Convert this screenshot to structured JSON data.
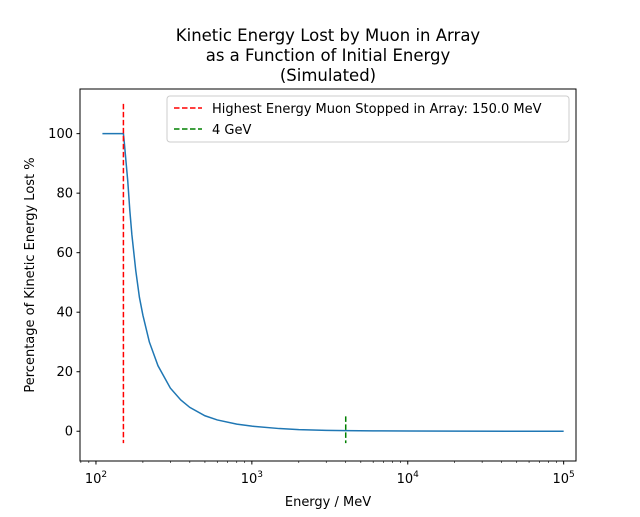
{
  "chart_data": {
    "type": "line",
    "title": [
      "Kinetic Energy Lost by Muon in Array",
      "as a Function of Initial Energy",
      "(Simulated)"
    ],
    "xlabel": "Energy / MeV",
    "ylabel": "Percentage of Kinetic Energy Lost %",
    "xscale": "log",
    "xlim": [
      79,
      120000
    ],
    "ylim": [
      -10,
      115
    ],
    "x_ticks": [
      {
        "value": 100,
        "base": "10",
        "exp": "2"
      },
      {
        "value": 1000,
        "base": "10",
        "exp": "3"
      },
      {
        "value": 10000,
        "base": "10",
        "exp": "4"
      },
      {
        "value": 100000,
        "base": "10",
        "exp": "5"
      }
    ],
    "y_ticks": [
      0,
      20,
      40,
      60,
      80,
      100
    ],
    "grid": false,
    "legend_position": "top-right",
    "series": [
      {
        "name": "kinetic-energy-lost",
        "color": "#1f77b4",
        "style": "solid",
        "x": [
          110,
          130,
          150,
          152,
          155,
          160,
          165,
          170,
          180,
          190,
          200,
          220,
          250,
          300,
          350,
          400,
          500,
          600,
          800,
          1000,
          1500,
          2000,
          3000,
          4000,
          6000,
          10000,
          20000,
          50000,
          100000
        ],
        "y": [
          100,
          100,
          100,
          97,
          92,
          84,
          74,
          66,
          54,
          45,
          39,
          30,
          22,
          14.5,
          10.5,
          8,
          5.2,
          3.8,
          2.4,
          1.7,
          0.9,
          0.55,
          0.3,
          0.2,
          0.13,
          0.07,
          0.03,
          0.01,
          0.005
        ]
      }
    ],
    "vlines": [
      {
        "name": "stopped-line",
        "label": "Highest Energy Muon Stopped in Array: 150.0 MeV",
        "x": 150,
        "ymin": -4,
        "ymax": 110,
        "color": "#ff0000",
        "style": "dashed"
      },
      {
        "name": "four-gev-line",
        "label": "4 GeV",
        "x": 4000,
        "ymin": -4,
        "ymax": 5,
        "color": "#008000",
        "style": "dashed"
      }
    ]
  }
}
